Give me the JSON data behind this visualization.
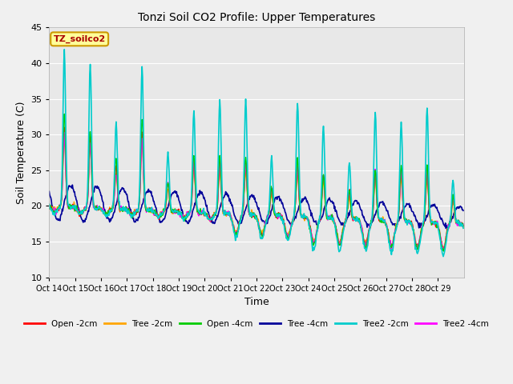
{
  "title": "Tonzi Soil CO2 Profile: Upper Temperatures",
  "xlabel": "Time",
  "ylabel": "Soil Temperature (C)",
  "watermark": "TZ_soilco2",
  "ylim": [
    10,
    45
  ],
  "yticks": [
    10,
    15,
    20,
    25,
    30,
    35,
    40,
    45
  ],
  "series_colors": {
    "Open -2cm": "#ff0000",
    "Tree -2cm": "#ffa500",
    "Open -4cm": "#00cc00",
    "Tree -4cm": "#000099",
    "Tree2 -2cm": "#00cccc",
    "Tree2 -4cm": "#ff00ff"
  },
  "series_lw": {
    "Open -2cm": 1.0,
    "Tree -2cm": 1.0,
    "Open -4cm": 1.0,
    "Tree -4cm": 1.2,
    "Tree2 -2cm": 1.2,
    "Tree2 -4cm": 1.0
  },
  "num_days": 16,
  "bg_color": "#e8e8e8",
  "fig_facecolor": "#f0f0f0",
  "grid_color": "white",
  "xtick_labels": [
    "Oct 14",
    "Oct 15",
    "Oct 16",
    "Oct 17",
    "Oct 18",
    "Oct 19",
    "Oct 20",
    "Oct 21",
    "Oct 22",
    "Oct 23",
    "Oct 24",
    "Oct 25",
    "Oct 26",
    "Oct 27",
    "Oct 28",
    "Oct 29"
  ]
}
